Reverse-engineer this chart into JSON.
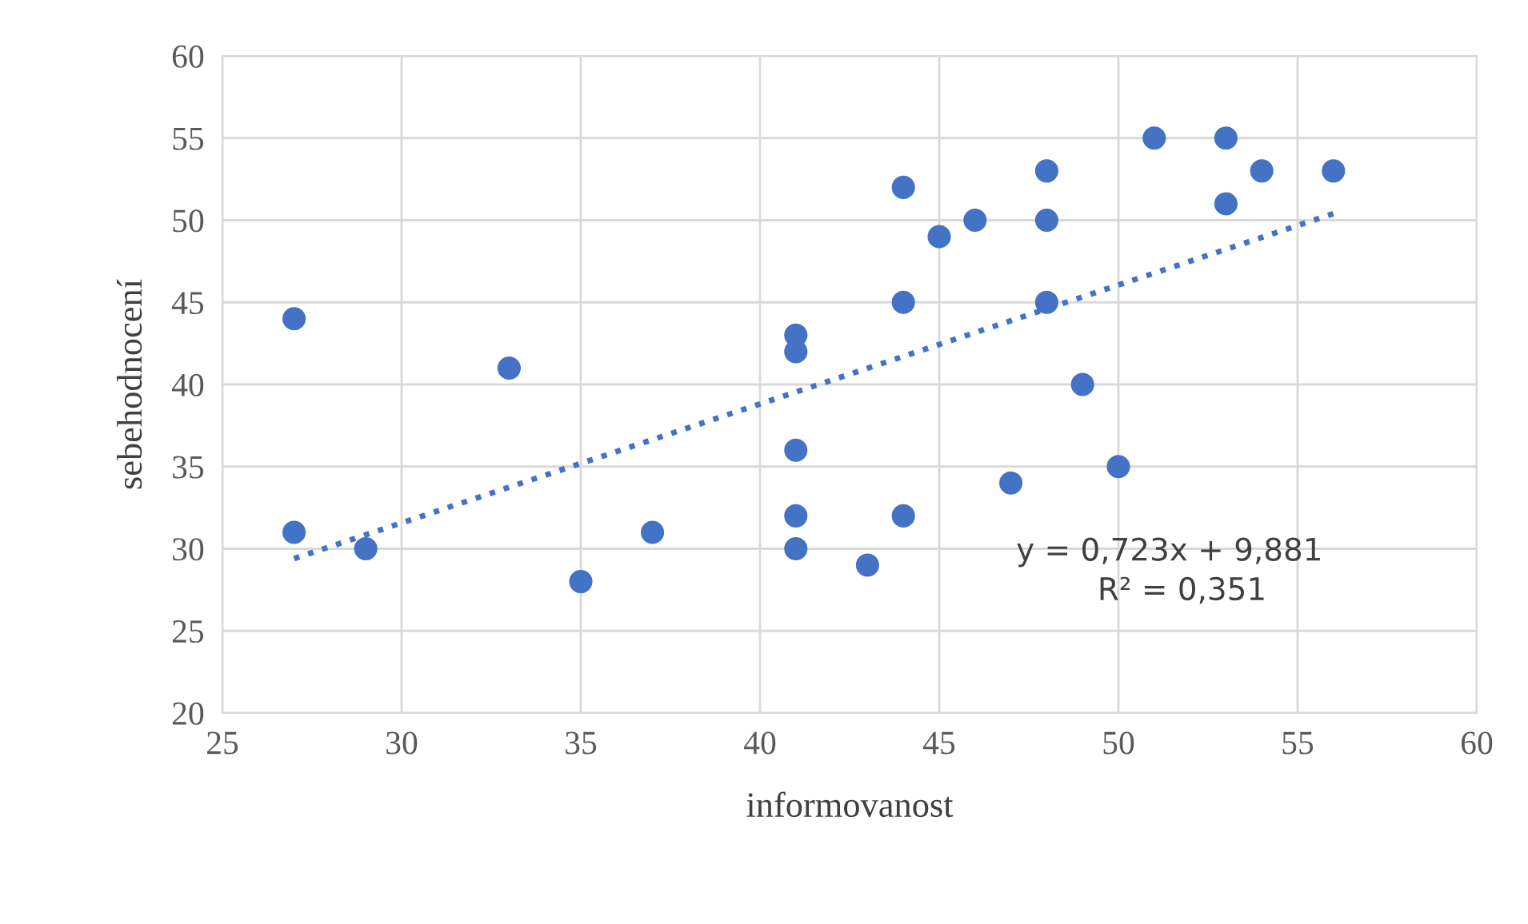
{
  "chart_data": {
    "type": "scatter",
    "xlabel": "informovanost",
    "ylabel": "sebehodnocení",
    "series": [
      {
        "color": "#4472c4",
        "marker": "circle",
        "x": [
          27,
          27,
          29,
          33,
          35,
          37,
          41,
          41,
          41,
          41,
          41,
          43,
          44,
          44,
          44,
          45,
          46,
          47,
          48,
          48,
          48,
          49,
          50,
          51,
          53,
          53,
          54,
          56
        ],
        "values": [
          44,
          31,
          30,
          41,
          28,
          31,
          43,
          42,
          36,
          32,
          30,
          29,
          52,
          45,
          32,
          49,
          50,
          34,
          53,
          50,
          45,
          40,
          35,
          55,
          55,
          51,
          53,
          53
        ]
      },
      {
        "type": "line",
        "color": "#4472c4",
        "line_style": "dotted",
        "x": [
          27,
          56
        ],
        "values": [
          29.4,
          50.4
        ]
      }
    ],
    "annotations": [
      "y = 0,723x + 9,881",
      "R² = 0,351"
    ],
    "xlim": [
      25,
      60
    ],
    "xticks": [
      25,
      30,
      35,
      40,
      45,
      50,
      55,
      60
    ],
    "ylim": [
      20,
      60
    ],
    "yticks": [
      20,
      25,
      30,
      35,
      40,
      45,
      50,
      55,
      60
    ],
    "grid": true,
    "legend": false
  }
}
